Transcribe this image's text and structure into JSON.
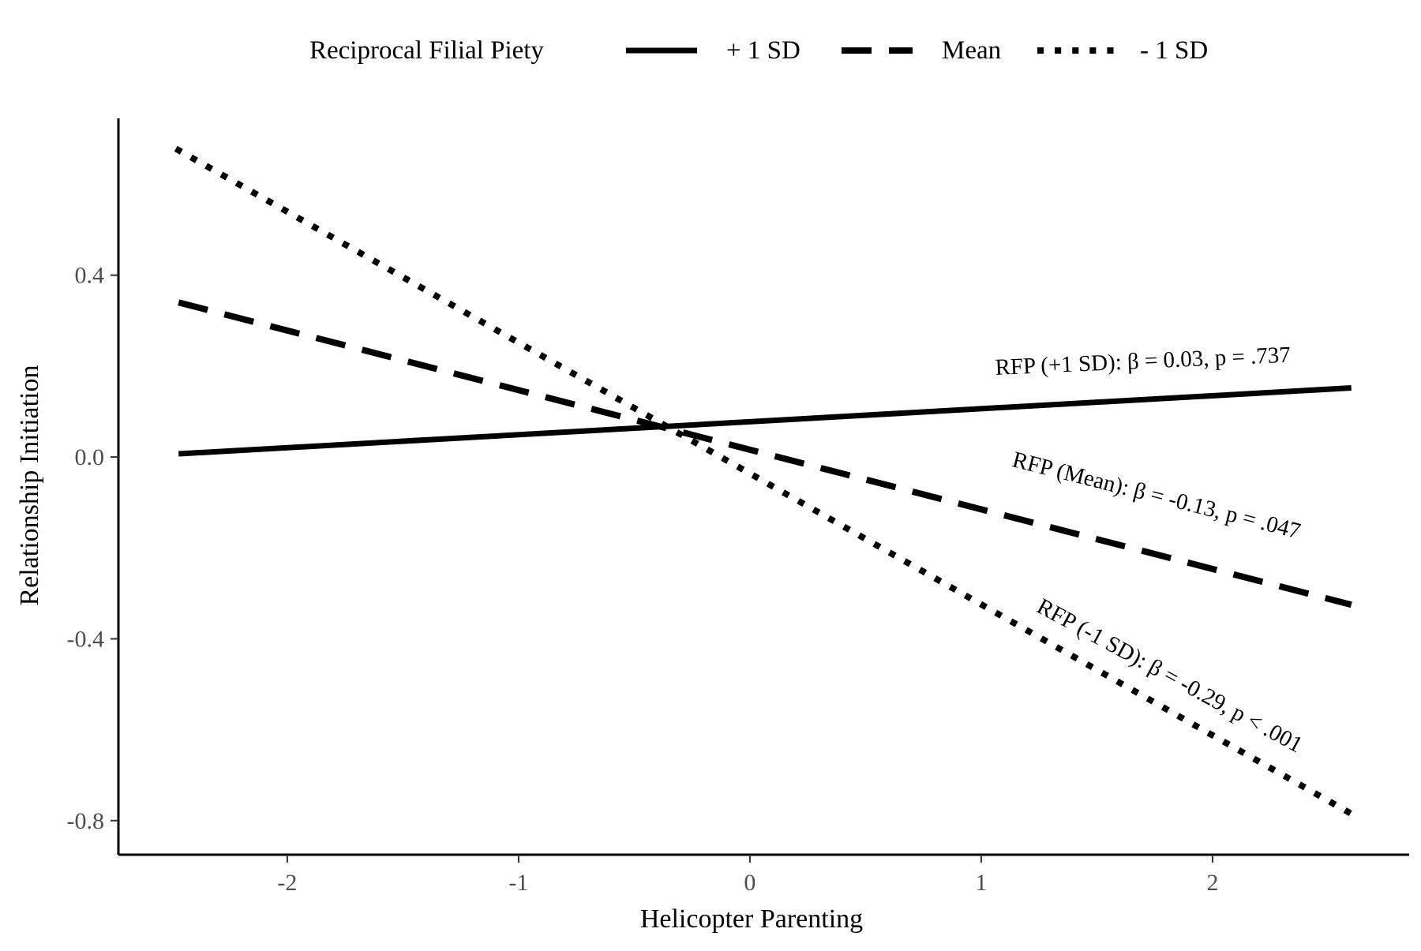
{
  "chart_data": {
    "type": "line",
    "xlabel": "Helicopter Parenting",
    "ylabel": "Relationship Initiation",
    "xlim": [
      -2.73,
      2.85
    ],
    "ylim": [
      -0.875,
      0.745
    ],
    "x_ticks": [
      -2,
      -1,
      0,
      1,
      2
    ],
    "x_tick_labels": [
      "-2",
      "-1",
      "0",
      "1",
      "2"
    ],
    "y_ticks": [
      0.4,
      0.0,
      -0.4,
      -0.8
    ],
    "y_tick_labels": [
      "0.4",
      "0.0",
      "-0.4",
      "-0.8"
    ],
    "grid": false,
    "legend": {
      "title": "Reciprocal Filial Piety",
      "position": "top",
      "entries": [
        "+ 1 SD",
        "Mean",
        "- 1 SD"
      ]
    },
    "series": [
      {
        "name": "+ 1 SD",
        "style": "solid",
        "x": [
          -2.47,
          2.6
        ],
        "y": [
          0.007,
          0.152
        ]
      },
      {
        "name": "Mean",
        "style": "dashed",
        "x": [
          -2.47,
          2.6
        ],
        "y": [
          0.34,
          -0.325
        ]
      },
      {
        "name": "- 1 SD",
        "style": "dotted",
        "x": [
          -2.47,
          2.6
        ],
        "y": [
          0.675,
          -0.785
        ]
      }
    ],
    "annotations": [
      {
        "text": "RFP (+1 SD): β = 0.03, p = .737",
        "x": 1.7,
        "y": 0.195,
        "angle": -2.5
      },
      {
        "text": "RFP (Mean): β = -0.13, p = .047",
        "x": 1.75,
        "y": -0.1,
        "angle": 14.2
      },
      {
        "text": "RFP (-1 SD): β = -0.29, p < .001",
        "x": 1.8,
        "y": -0.495,
        "angle": 28.5
      }
    ],
    "colors": {
      "line": "#000000",
      "tick_text": "#4d4d4d",
      "axis": "#000000"
    }
  }
}
